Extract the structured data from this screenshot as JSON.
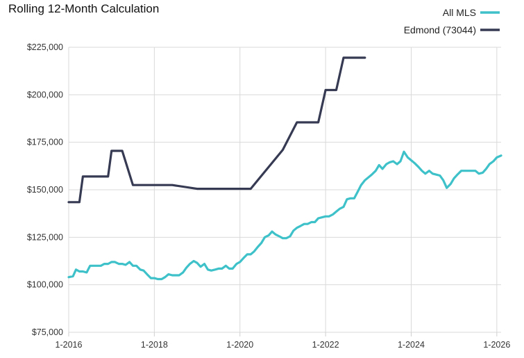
{
  "chart_data": {
    "type": "line",
    "title": "Rolling 12-Month Calculation",
    "xlabel": "",
    "ylabel": "",
    "xlim": [
      2016.0,
      2026.1
    ],
    "ylim": [
      75000,
      225000
    ],
    "y_ticks": [
      75000,
      100000,
      125000,
      150000,
      175000,
      200000,
      225000
    ],
    "y_tick_labels": [
      "$75,000",
      "$100,000",
      "$125,000",
      "$150,000",
      "$175,000",
      "$200,000",
      "$225,000"
    ],
    "x_ticks": [
      2016,
      2018,
      2020,
      2022,
      2024,
      2026
    ],
    "x_tick_labels": [
      "1-2016",
      "1-2018",
      "1-2020",
      "1-2022",
      "1-2024",
      "1-2026"
    ],
    "grid": true,
    "legend_position": "top-right",
    "series": [
      {
        "name": "All MLS",
        "color": "#3ec1c9",
        "x": [
          2016.0,
          2016.1,
          2016.17,
          2016.25,
          2016.33,
          2016.42,
          2016.5,
          2016.58,
          2016.67,
          2016.75,
          2016.83,
          2016.92,
          2017.0,
          2017.08,
          2017.17,
          2017.25,
          2017.33,
          2017.42,
          2017.5,
          2017.58,
          2017.67,
          2017.75,
          2017.83,
          2017.92,
          2018.0,
          2018.08,
          2018.17,
          2018.25,
          2018.33,
          2018.42,
          2018.5,
          2018.58,
          2018.67,
          2018.75,
          2018.83,
          2018.92,
          2019.0,
          2019.08,
          2019.17,
          2019.25,
          2019.33,
          2019.42,
          2019.5,
          2019.58,
          2019.67,
          2019.75,
          2019.83,
          2019.92,
          2020.0,
          2020.08,
          2020.17,
          2020.25,
          2020.33,
          2020.42,
          2020.5,
          2020.58,
          2020.67,
          2020.75,
          2020.83,
          2020.92,
          2021.0,
          2021.08,
          2021.17,
          2021.25,
          2021.33,
          2021.42,
          2021.5,
          2021.58,
          2021.67,
          2021.75,
          2021.83,
          2021.92,
          2022.0,
          2022.08,
          2022.17,
          2022.25,
          2022.33,
          2022.42,
          2022.5,
          2022.58,
          2022.67,
          2022.75,
          2022.83,
          2022.92,
          2023.0,
          2023.08,
          2023.17,
          2023.25,
          2023.33,
          2023.42,
          2023.5,
          2023.58,
          2023.67,
          2023.75,
          2023.83,
          2023.92,
          2024.0,
          2024.08,
          2024.17,
          2024.25,
          2024.33,
          2024.42,
          2024.5,
          2024.58,
          2024.67,
          2024.75,
          2024.83,
          2024.92,
          2025.0,
          2025.08,
          2025.17,
          2025.25,
          2025.33,
          2025.42,
          2025.5,
          2025.58,
          2025.67,
          2025.75,
          2025.83,
          2025.92,
          2026.0,
          2026.1
        ],
        "y": [
          104000,
          104500,
          108000,
          107000,
          107000,
          106500,
          110000,
          110000,
          110000,
          110000,
          111000,
          111000,
          112000,
          112000,
          111000,
          111000,
          110500,
          112000,
          110000,
          110000,
          108000,
          107500,
          105500,
          103500,
          103500,
          103000,
          103000,
          104000,
          105500,
          105000,
          105000,
          105000,
          106500,
          109000,
          111000,
          112500,
          111500,
          109500,
          111000,
          108000,
          107500,
          108000,
          108500,
          108500,
          110000,
          108500,
          108500,
          111000,
          112000,
          114000,
          116000,
          116000,
          117500,
          120000,
          122000,
          125000,
          126000,
          128000,
          126500,
          125500,
          124500,
          124500,
          125500,
          128500,
          130000,
          131000,
          132000,
          132000,
          133000,
          133000,
          135000,
          135500,
          136000,
          136000,
          137000,
          138500,
          140000,
          141000,
          145000,
          145500,
          145500,
          149000,
          152500,
          155000,
          156500,
          158000,
          160000,
          163000,
          161000,
          163500,
          164500,
          165000,
          163500,
          165000,
          170000,
          167000,
          165500,
          164000,
          162000,
          160000,
          158500,
          160000,
          158500,
          158000,
          157500,
          155000,
          151000,
          153000,
          156000,
          158000,
          160000,
          160000,
          160000,
          160000,
          160000,
          158500,
          159000,
          161000,
          163500,
          165000,
          167000,
          168000
        ]
      },
      {
        "name": "Edmond (73044)",
        "color": "#363a52",
        "x": [
          2016.0,
          2016.25,
          2016.33,
          2016.5,
          2016.92,
          2017.0,
          2017.25,
          2017.5,
          2018.0,
          2018.42,
          2019.0,
          2019.17,
          2020.0,
          2020.25,
          2021.0,
          2021.33,
          2021.58,
          2021.83,
          2022.0,
          2022.25,
          2022.42,
          2022.58,
          2022.92
        ],
        "y": [
          143500,
          143500,
          157000,
          157000,
          157000,
          170500,
          170500,
          152500,
          152500,
          152500,
          150500,
          150500,
          150500,
          150500,
          171000,
          185500,
          185500,
          185500,
          202500,
          202500,
          219500,
          219500,
          219500
        ]
      }
    ]
  }
}
